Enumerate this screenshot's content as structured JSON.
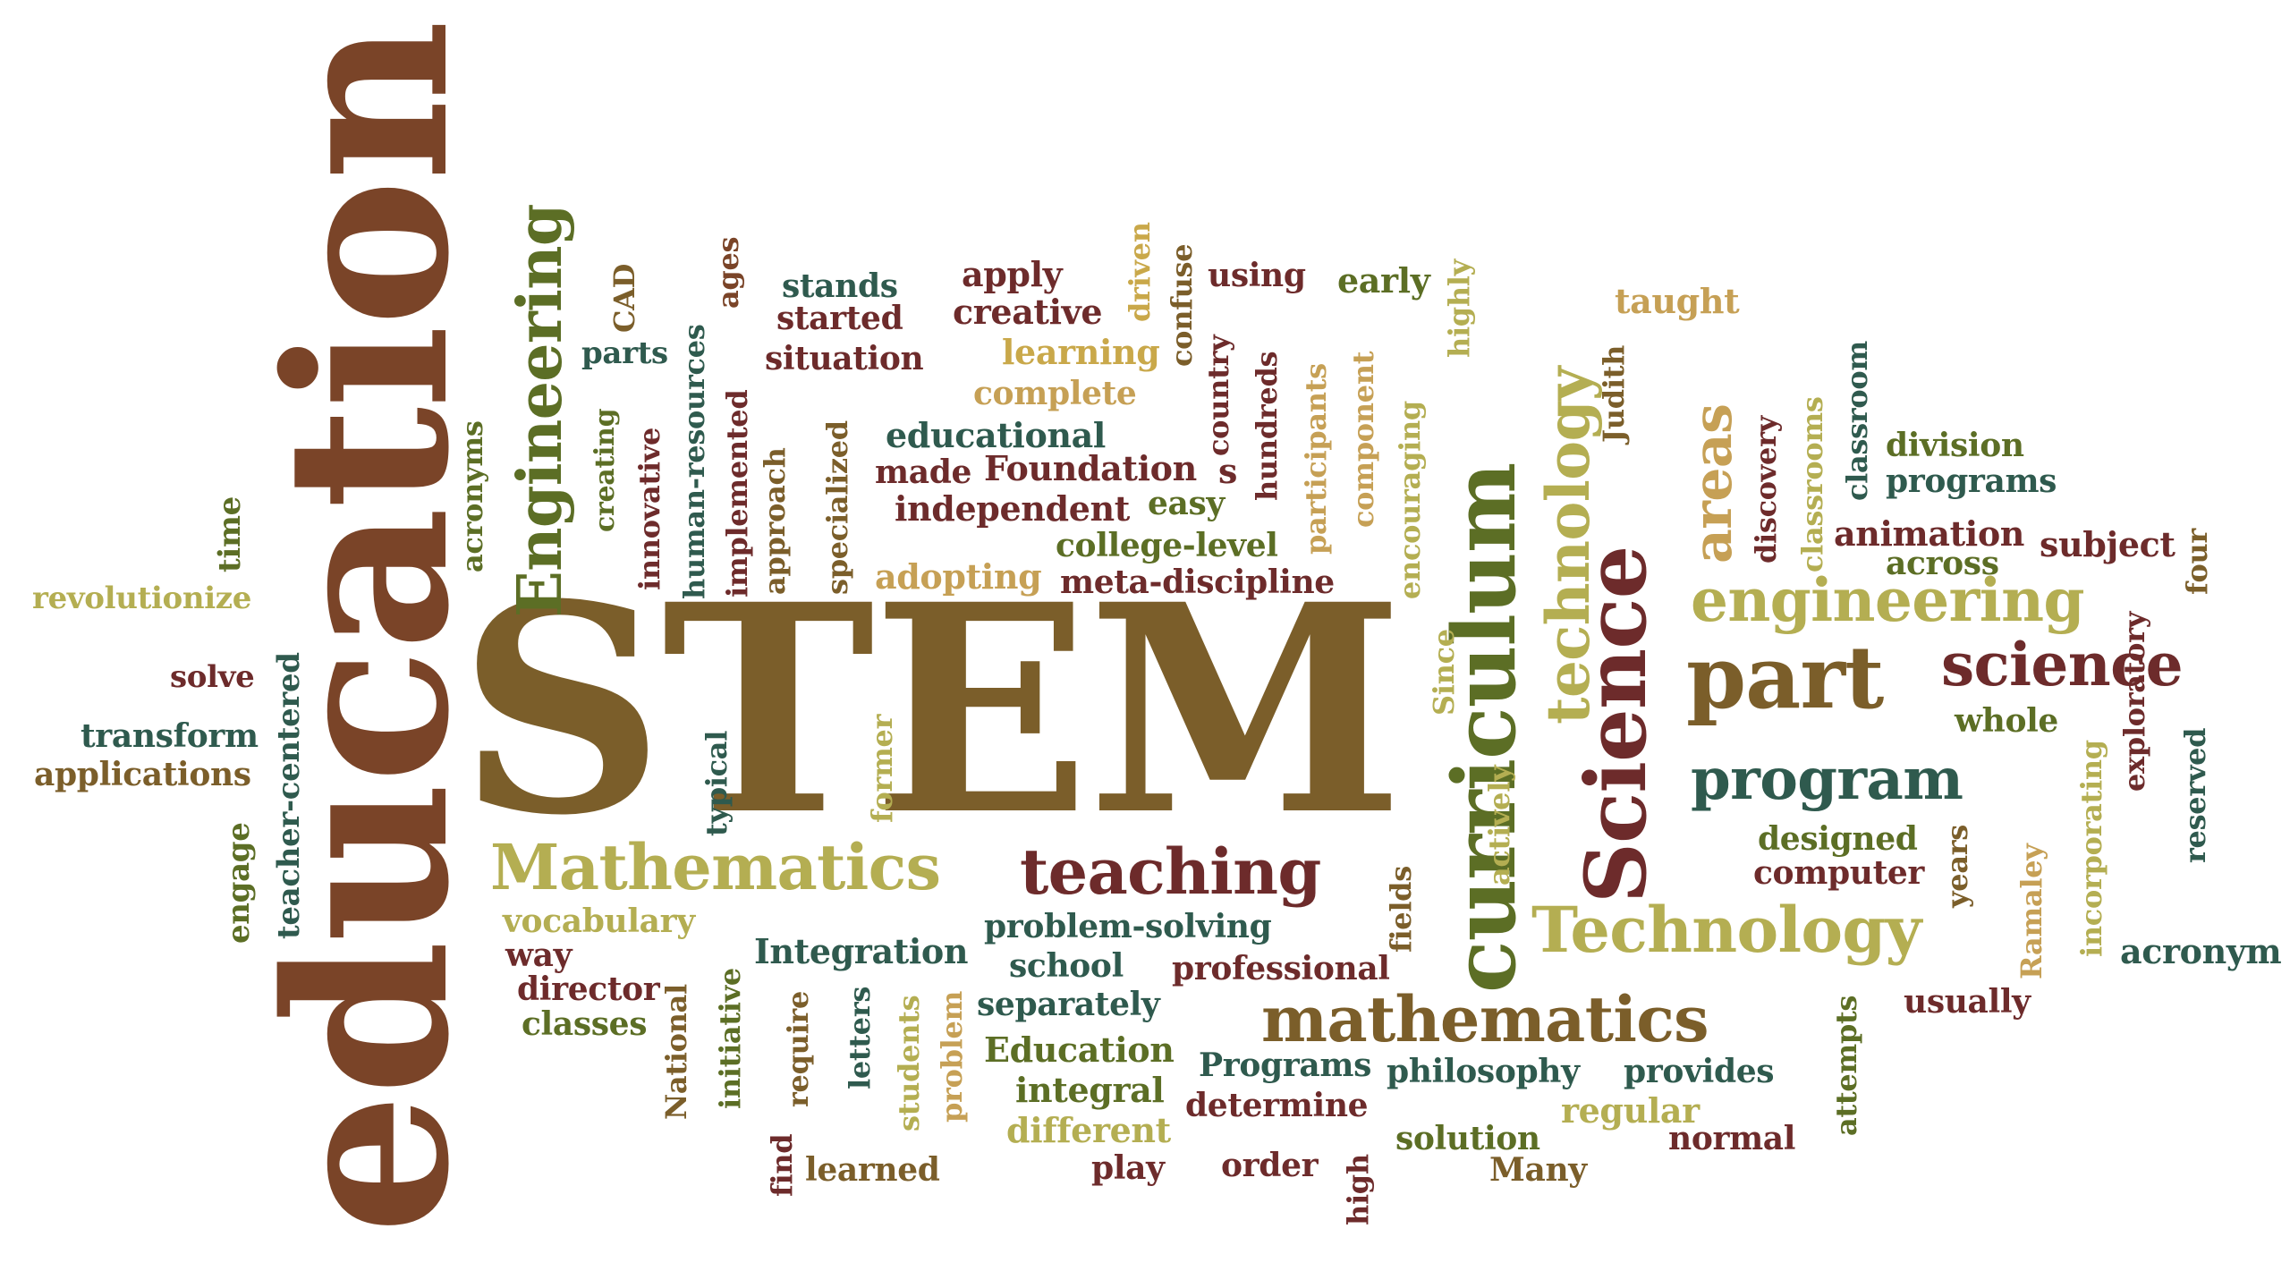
{
  "colors": {
    "brown": "#7a4428",
    "olive_brown": "#7b5e2a",
    "dark_red": "#6d2b2b",
    "teal": "#2f5a4e",
    "olive": "#5c6e25",
    "gold": "#c9a84a",
    "khaki": "#b4ae52",
    "tan": "#c6a055"
  },
  "words": [
    {
      "id": "education",
      "text": "education"
    },
    {
      "id": "stem",
      "text": "STEM"
    },
    {
      "id": "engineering-cap",
      "text": "Engineering"
    },
    {
      "id": "mathematics-cap",
      "text": "Mathematics"
    },
    {
      "id": "curriculum",
      "text": "curriculum"
    },
    {
      "id": "science-cap",
      "text": "Science"
    },
    {
      "id": "technology-cap",
      "text": "Technology"
    },
    {
      "id": "mathematics",
      "text": "mathematics"
    },
    {
      "id": "teaching",
      "text": "teaching"
    },
    {
      "id": "part",
      "text": "part"
    },
    {
      "id": "engineering",
      "text": "engineering"
    },
    {
      "id": "science",
      "text": "science"
    },
    {
      "id": "program",
      "text": "program"
    },
    {
      "id": "technology",
      "text": "technology"
    },
    {
      "id": "areas",
      "text": "areas"
    },
    {
      "id": "revolutionize",
      "text": "revolutionize"
    },
    {
      "id": "solve",
      "text": "solve"
    },
    {
      "id": "transform",
      "text": "transform"
    },
    {
      "id": "applications",
      "text": "applications"
    },
    {
      "id": "time",
      "text": "time"
    },
    {
      "id": "engage",
      "text": "engage"
    },
    {
      "id": "teacher-centered",
      "text": "teacher-centered"
    },
    {
      "id": "acronyms",
      "text": "acronyms"
    },
    {
      "id": "creating",
      "text": "creating"
    },
    {
      "id": "cad",
      "text": "CAD"
    },
    {
      "id": "parts",
      "text": "parts"
    },
    {
      "id": "innovative",
      "text": "innovative"
    },
    {
      "id": "human-resources",
      "text": "human-resources"
    },
    {
      "id": "ages",
      "text": "ages"
    },
    {
      "id": "implemented",
      "text": "implemented"
    },
    {
      "id": "approach",
      "text": "approach"
    },
    {
      "id": "stands",
      "text": "stands"
    },
    {
      "id": "started",
      "text": "started"
    },
    {
      "id": "situation",
      "text": "situation"
    },
    {
      "id": "specialized",
      "text": "specialized"
    },
    {
      "id": "apply",
      "text": "apply"
    },
    {
      "id": "creative",
      "text": "creative"
    },
    {
      "id": "learning",
      "text": "learning"
    },
    {
      "id": "complete",
      "text": "complete"
    },
    {
      "id": "driven",
      "text": "driven"
    },
    {
      "id": "confuse",
      "text": "confuse"
    },
    {
      "id": "using",
      "text": "using"
    },
    {
      "id": "early",
      "text": "early"
    },
    {
      "id": "highly",
      "text": "highly"
    },
    {
      "id": "country",
      "text": "country"
    },
    {
      "id": "hundreds",
      "text": "hundreds"
    },
    {
      "id": "participants",
      "text": "participants"
    },
    {
      "id": "component",
      "text": "component"
    },
    {
      "id": "encouraging",
      "text": "encouraging"
    },
    {
      "id": "educational",
      "text": "educational"
    },
    {
      "id": "made",
      "text": "made"
    },
    {
      "id": "foundation",
      "text": "Foundation"
    },
    {
      "id": "s",
      "text": "s"
    },
    {
      "id": "independent",
      "text": "independent"
    },
    {
      "id": "easy",
      "text": "easy"
    },
    {
      "id": "college-level",
      "text": "college-level"
    },
    {
      "id": "adopting",
      "text": "adopting"
    },
    {
      "id": "meta-discipline",
      "text": "meta-discipline"
    },
    {
      "id": "taught",
      "text": "taught"
    },
    {
      "id": "judith",
      "text": "Judith"
    },
    {
      "id": "discovery",
      "text": "discovery"
    },
    {
      "id": "classrooms",
      "text": "classrooms"
    },
    {
      "id": "classroom",
      "text": "classroom"
    },
    {
      "id": "division",
      "text": "division"
    },
    {
      "id": "programs",
      "text": "programs"
    },
    {
      "id": "animation",
      "text": "animation"
    },
    {
      "id": "across",
      "text": "across"
    },
    {
      "id": "subject",
      "text": "subject"
    },
    {
      "id": "four",
      "text": "four"
    },
    {
      "id": "whole",
      "text": "whole"
    },
    {
      "id": "exploratory",
      "text": "exploratory"
    },
    {
      "id": "reserved",
      "text": "reserved"
    },
    {
      "id": "incorporating",
      "text": "incorporating"
    },
    {
      "id": "designed",
      "text": "designed"
    },
    {
      "id": "computer",
      "text": "computer"
    },
    {
      "id": "years",
      "text": "years"
    },
    {
      "id": "ramaley",
      "text": "Ramaley"
    },
    {
      "id": "acronym",
      "text": "acronym"
    },
    {
      "id": "usually",
      "text": "usually"
    },
    {
      "id": "attempts",
      "text": "attempts"
    },
    {
      "id": "since",
      "text": "Since"
    },
    {
      "id": "actively",
      "text": "actively"
    },
    {
      "id": "typical",
      "text": "typical"
    },
    {
      "id": "former",
      "text": "former"
    },
    {
      "id": "vocabulary",
      "text": "vocabulary"
    },
    {
      "id": "way",
      "text": "way"
    },
    {
      "id": "director",
      "text": "director"
    },
    {
      "id": "classes",
      "text": "classes"
    },
    {
      "id": "national",
      "text": "National"
    },
    {
      "id": "initiative",
      "text": "initiative"
    },
    {
      "id": "integration",
      "text": "Integration"
    },
    {
      "id": "require",
      "text": "require"
    },
    {
      "id": "letters",
      "text": "letters"
    },
    {
      "id": "students",
      "text": "students"
    },
    {
      "id": "problem",
      "text": "problem"
    },
    {
      "id": "find",
      "text": "find"
    },
    {
      "id": "learned",
      "text": "learned"
    },
    {
      "id": "problem-solving",
      "text": "problem-solving"
    },
    {
      "id": "school",
      "text": "school"
    },
    {
      "id": "separately",
      "text": "separately"
    },
    {
      "id": "professional",
      "text": "professional"
    },
    {
      "id": "fields",
      "text": "fields"
    },
    {
      "id": "education-cap",
      "text": "Education"
    },
    {
      "id": "integral",
      "text": "integral"
    },
    {
      "id": "different",
      "text": "different"
    },
    {
      "id": "programs-cap",
      "text": "Programs"
    },
    {
      "id": "determine",
      "text": "determine"
    },
    {
      "id": "philosophy",
      "text": "philosophy"
    },
    {
      "id": "provides",
      "text": "provides"
    },
    {
      "id": "regular",
      "text": "regular"
    },
    {
      "id": "solution",
      "text": "solution"
    },
    {
      "id": "normal",
      "text": "normal"
    },
    {
      "id": "play",
      "text": "play"
    },
    {
      "id": "order",
      "text": "order"
    },
    {
      "id": "high",
      "text": "high"
    },
    {
      "id": "many",
      "text": "Many"
    }
  ]
}
